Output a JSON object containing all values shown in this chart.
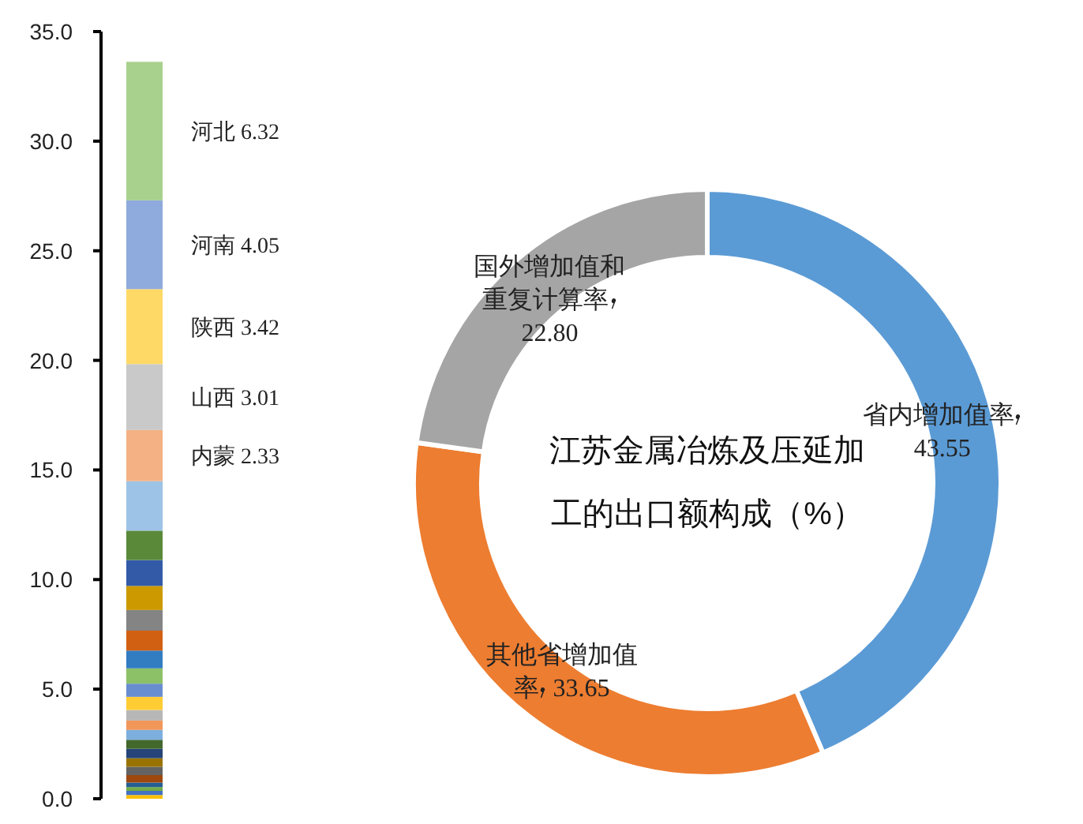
{
  "chart_data": [
    {
      "type": "bar",
      "stacked": true,
      "categories": [
        null
      ],
      "tick_labels": "y",
      "grid": false,
      "ylim": [
        0,
        35
      ],
      "yticks": [
        {
          "value": 0,
          "label": "0.0"
        },
        {
          "value": 5,
          "label": "5.0"
        },
        {
          "value": 10,
          "label": "10.0"
        },
        {
          "value": 15,
          "label": "15.0"
        },
        {
          "value": 20,
          "label": "20.0"
        },
        {
          "value": 25,
          "label": "25.0"
        },
        {
          "value": 30,
          "label": "30.0"
        },
        {
          "value": 35,
          "label": "35.0"
        }
      ],
      "series": [
        {
          "color": "#ffc000",
          "values": [
            0.17
          ]
        },
        {
          "color": "#4472c4",
          "values": [
            0.19
          ]
        },
        {
          "color": "#70ad47",
          "values": [
            0.17
          ]
        },
        {
          "color": "#255e91",
          "values": [
            0.21
          ]
        },
        {
          "color": "#9e480e",
          "values": [
            0.34
          ]
        },
        {
          "color": "#636363",
          "values": [
            0.38
          ]
        },
        {
          "color": "#997300",
          "values": [
            0.39
          ]
        },
        {
          "color": "#264478",
          "values": [
            0.43
          ]
        },
        {
          "color": "#43682b",
          "values": [
            0.41
          ]
        },
        {
          "color": "#7cafdd",
          "values": [
            0.45
          ]
        },
        {
          "color": "#f1975a",
          "values": [
            0.43
          ]
        },
        {
          "color": "#b7b7b7",
          "values": [
            0.48
          ]
        },
        {
          "color": "#ffcd33",
          "values": [
            0.6
          ]
        },
        {
          "color": "#698ed0",
          "values": [
            0.6
          ]
        },
        {
          "color": "#8cc168",
          "values": [
            0.7
          ]
        },
        {
          "color": "#327dc2",
          "values": [
            0.81
          ]
        },
        {
          "color": "#d26012",
          "values": [
            0.91
          ]
        },
        {
          "color": "#848484",
          "values": [
            0.94
          ]
        },
        {
          "color": "#cc9a00",
          "values": [
            1.1
          ]
        },
        {
          "color": "#335aa7",
          "values": [
            1.18
          ]
        },
        {
          "color": "#5a8a39",
          "values": [
            1.34
          ]
        },
        {
          "color": "#9dc3e6",
          "values": [
            2.26
          ]
        },
        {
          "name": "内蒙",
          "color": "#f4b183",
          "values": [
            2.33
          ],
          "value_labels": [
            "2.33"
          ]
        },
        {
          "name": "山西",
          "color": "#c9c9c9",
          "values": [
            3.01
          ],
          "value_labels": [
            "3.01"
          ]
        },
        {
          "name": "陕西",
          "color": "#ffd966",
          "values": [
            3.42
          ],
          "value_labels": [
            "3.42"
          ]
        },
        {
          "name": "河南",
          "color": "#8faadc",
          "values": [
            4.05
          ],
          "value_labels": [
            "4.05"
          ]
        },
        {
          "name": "河北",
          "color": "#a9d18e",
          "values": [
            6.32
          ],
          "value_labels": [
            "6.32"
          ]
        }
      ]
    },
    {
      "type": "donut",
      "title": "江苏金属冶炼及压延加工的出口额构成（%）",
      "categories": [
        "省内增加值率",
        "其他省增加值率",
        "国外增加值和重复计算率"
      ],
      "values": [
        43.55,
        33.65,
        22.8
      ],
      "value_labels": [
        "43.55",
        "33.65",
        "22.80"
      ],
      "colors": [
        "#5b9bd5",
        "#ed7d31",
        "#a5a5a5"
      ]
    }
  ]
}
